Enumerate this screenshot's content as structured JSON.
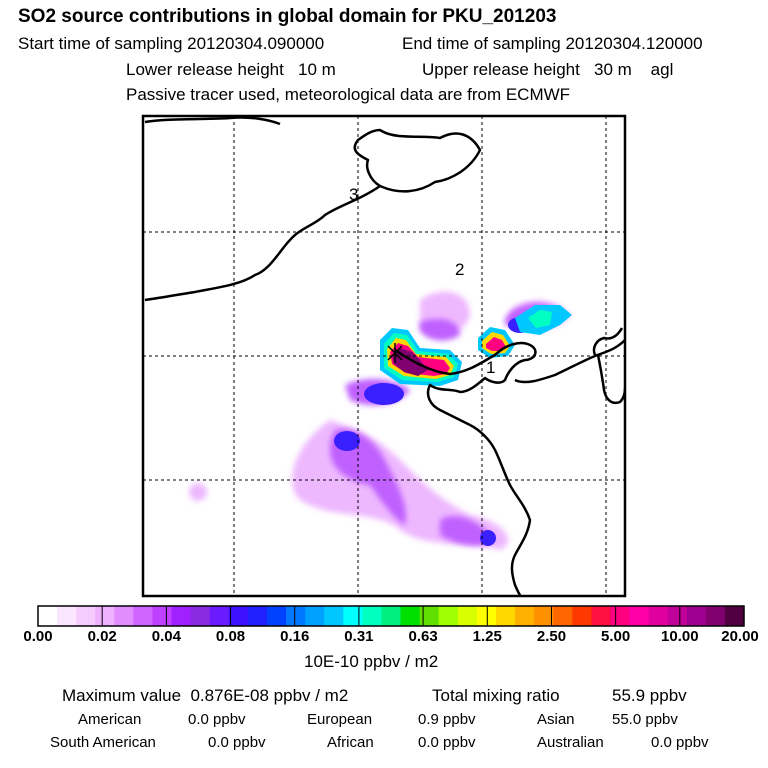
{
  "header": {
    "title": "SO2 source contributions in global domain for PKU_201203",
    "start_label": "Start time of sampling 20120304.090000",
    "end_label": "End time of sampling 20120304.120000",
    "lower_label": "Lower release height   10 m",
    "upper_label": "Upper release height   30 m    agl",
    "tracer_label": "Passive tracer used, meteorological data are from ECMWF"
  },
  "map": {
    "region_labels": [
      "1",
      "2",
      "3"
    ],
    "colors": {
      "frame": "#000000",
      "coast": "#000000",
      "grid": "#000000"
    }
  },
  "colorbar": {
    "tick_labels": [
      "0.00",
      "0.02",
      "0.04",
      "0.08",
      "0.16",
      "0.31",
      "0.63",
      "1.25",
      "2.50",
      "5.00",
      "10.00",
      "20.00"
    ],
    "units": "10E-10 ppbv / m2",
    "colors": [
      "#ffffff",
      "#fbe6ff",
      "#f6ccff",
      "#eeb0ff",
      "#e18cff",
      "#cf66ff",
      "#bf40ff",
      "#a020ff",
      "#8a2be2",
      "#6a1cff",
      "#3f10ff",
      "#2020ff",
      "#0040ff",
      "#0078ff",
      "#00a0ff",
      "#00c8ff",
      "#00ffff",
      "#00ffc0",
      "#00f080",
      "#00e000",
      "#60e000",
      "#a0ff00",
      "#d8ff00",
      "#ffff00",
      "#ffd800",
      "#ffb000",
      "#ff9000",
      "#ff6800",
      "#ff3800",
      "#ff1040",
      "#ff0080",
      "#ff00a8",
      "#e000a0",
      "#c00098",
      "#a00090",
      "#800070",
      "#500040"
    ]
  },
  "stats": {
    "max_label": "Maximum value  0.876E-08 ppbv / m2",
    "total_label": "Total mixing ratio",
    "total_value": "55.9 ppbv",
    "regions": [
      {
        "name": "American",
        "value": "0.0 ppbv"
      },
      {
        "name": "European",
        "value": "0.9 ppbv"
      },
      {
        "name": "Asian",
        "value": "55.0 ppbv"
      },
      {
        "name": "South American",
        "value": "0.0 ppbv"
      },
      {
        "name": "African",
        "value": "0.0 ppbv"
      },
      {
        "name": "Australian",
        "value": "0.0 ppbv"
      }
    ]
  }
}
